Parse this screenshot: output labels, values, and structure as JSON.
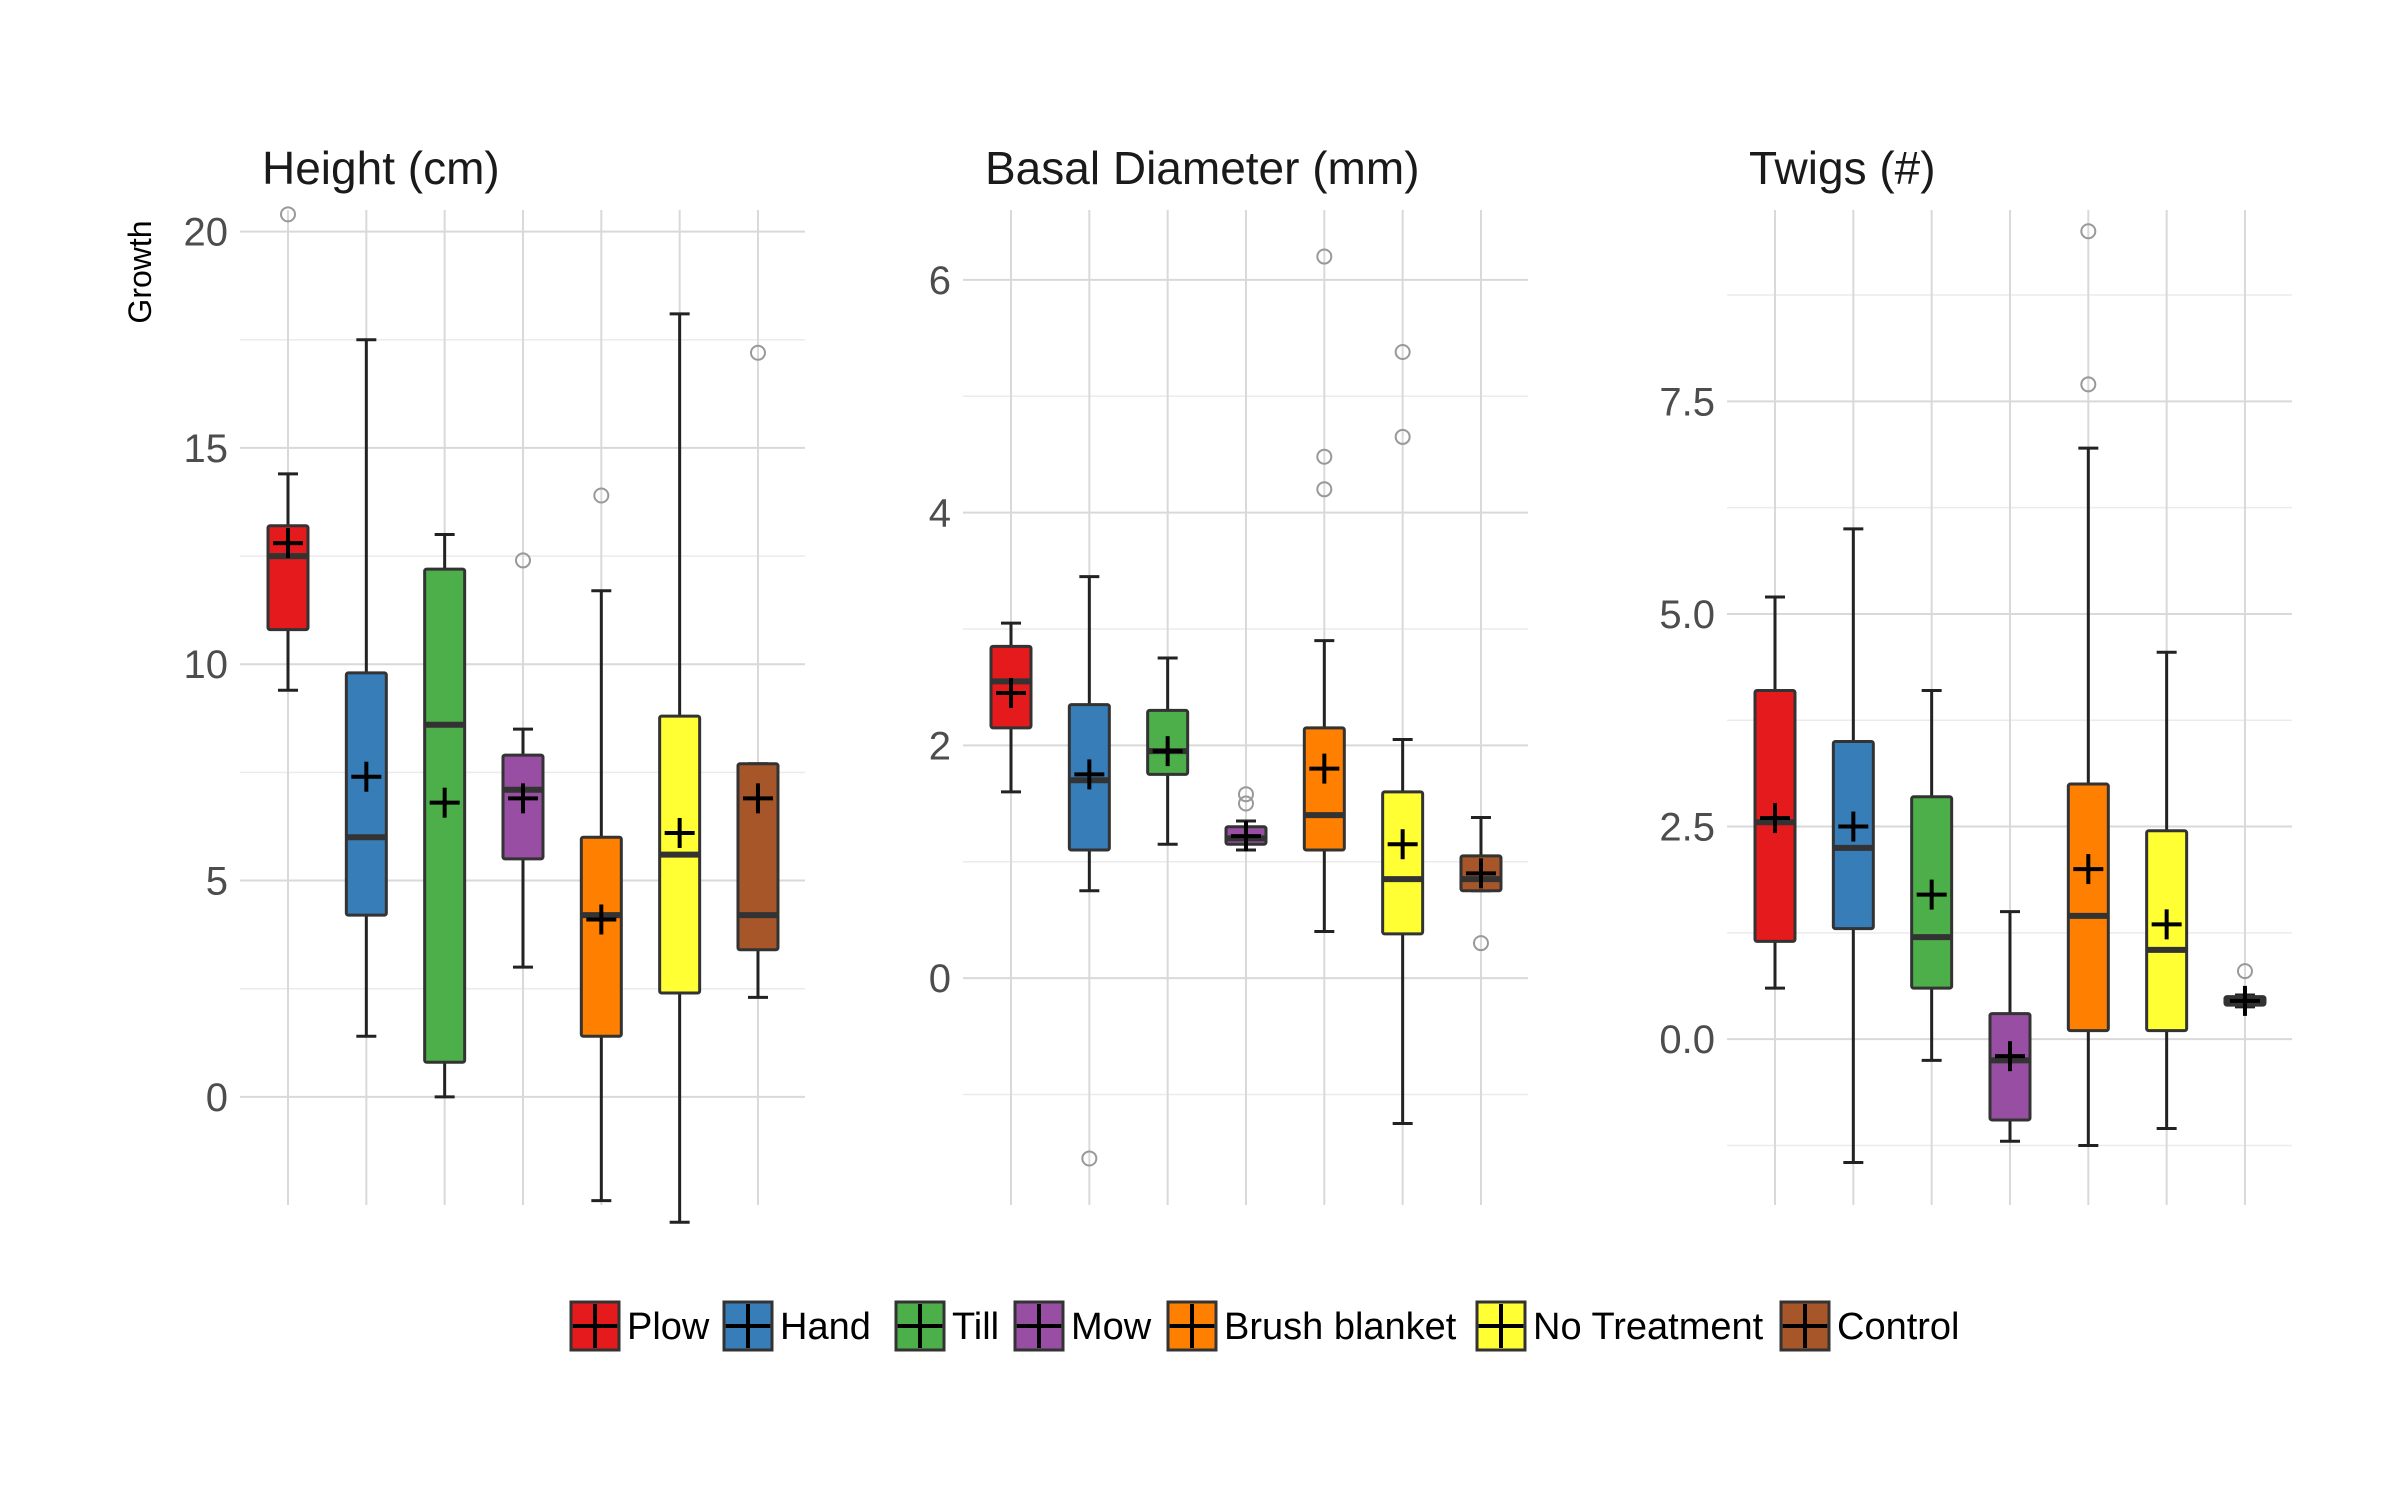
{
  "chart_data": {
    "type": "boxplot",
    "ylabel": "Growth",
    "categories": [
      "Plow",
      "Hand",
      "Till",
      "Mow",
      "Brush blanket",
      "No Treatment",
      "Control"
    ],
    "colors": [
      "#E41A1C",
      "#377EB8",
      "#4DAF4A",
      "#984EA3",
      "#FF7F00",
      "#FFFF33",
      "#A65628"
    ],
    "legend": {
      "position": "bottom",
      "labels": [
        "Plow",
        "Hand",
        "Till",
        "Mow",
        "Brush blanket",
        "No Treatment",
        "Control"
      ]
    },
    "panels": [
      {
        "title": "Height (cm)",
        "ylim": [
          -2.5,
          20.5
        ],
        "yticks": [
          0,
          5,
          10,
          15,
          20
        ],
        "ytick_labels": [
          "0",
          "5",
          "10",
          "15",
          "20"
        ],
        "boxes": [
          {
            "category": "Plow",
            "whisker_low": 9.4,
            "q1": 10.8,
            "median": 12.5,
            "q3": 13.2,
            "whisker_high": 14.4,
            "mean": 12.8,
            "outliers": [
              20.4
            ]
          },
          {
            "category": "Hand",
            "whisker_low": 1.4,
            "q1": 4.2,
            "median": 6.0,
            "q3": 9.8,
            "whisker_high": 17.5,
            "mean": 7.4,
            "outliers": []
          },
          {
            "category": "Till",
            "whisker_low": 0.0,
            "q1": 0.8,
            "median": 8.6,
            "q3": 12.2,
            "whisker_high": 13.0,
            "mean": 6.8,
            "outliers": []
          },
          {
            "category": "Mow",
            "whisker_low": 3.0,
            "q1": 5.5,
            "median": 7.1,
            "q3": 7.9,
            "whisker_high": 8.5,
            "mean": 6.9,
            "outliers": [
              12.4
            ]
          },
          {
            "category": "Brush blanket",
            "whisker_low": -2.4,
            "q1": 1.4,
            "median": 4.2,
            "q3": 6.0,
            "whisker_high": 11.7,
            "mean": 4.1,
            "outliers": [
              13.9
            ]
          },
          {
            "category": "No Treatment",
            "whisker_low": -2.9,
            "q1": 2.4,
            "median": 5.6,
            "q3": 8.8,
            "whisker_high": 18.1,
            "mean": 6.1,
            "outliers": []
          },
          {
            "category": "Control",
            "whisker_low": 2.3,
            "q1": 3.4,
            "median": 4.2,
            "q3": 7.7,
            "whisker_high": 7.7,
            "mean": 6.9,
            "outliers": [
              17.2
            ]
          }
        ]
      },
      {
        "title": "Basal Diameter (mm)",
        "ylim": [
          -1.95,
          6.6
        ],
        "yticks": [
          0,
          2,
          4,
          6
        ],
        "ytick_labels": [
          "0",
          "2",
          "4",
          "6"
        ],
        "boxes": [
          {
            "category": "Plow",
            "whisker_low": 1.6,
            "q1": 2.15,
            "median": 2.55,
            "q3": 2.85,
            "whisker_high": 3.05,
            "mean": 2.45,
            "outliers": []
          },
          {
            "category": "Hand",
            "whisker_low": 0.75,
            "q1": 1.1,
            "median": 1.7,
            "q3": 2.35,
            "whisker_high": 3.45,
            "mean": 1.75,
            "outliers": [
              -1.55
            ]
          },
          {
            "category": "Till",
            "whisker_low": 1.15,
            "q1": 1.75,
            "median": 1.95,
            "q3": 2.3,
            "whisker_high": 2.75,
            "mean": 1.95,
            "outliers": []
          },
          {
            "category": "Mow",
            "whisker_low": 1.1,
            "q1": 1.15,
            "median": 1.2,
            "q3": 1.3,
            "whisker_high": 1.35,
            "mean": 1.22,
            "outliers": [
              1.5,
              1.58
            ]
          },
          {
            "category": "Brush blanket",
            "whisker_low": 0.4,
            "q1": 1.1,
            "median": 1.4,
            "q3": 2.15,
            "whisker_high": 2.9,
            "mean": 1.8,
            "outliers": [
              4.2,
              4.48,
              6.2
            ]
          },
          {
            "category": "No Treatment",
            "whisker_low": -1.25,
            "q1": 0.38,
            "median": 0.85,
            "q3": 1.6,
            "whisker_high": 2.05,
            "mean": 1.15,
            "outliers": [
              4.65,
              5.38
            ]
          },
          {
            "category": "Control",
            "whisker_low": 0.75,
            "q1": 0.75,
            "median": 0.85,
            "q3": 1.05,
            "whisker_high": 1.38,
            "mean": 0.9,
            "outliers": [
              0.3
            ]
          }
        ]
      },
      {
        "title": "Twigs (#)",
        "ylim": [
          -1.95,
          9.75
        ],
        "yticks": [
          0,
          2.5,
          5,
          7.5
        ],
        "ytick_labels": [
          "0.0",
          "2.5",
          "5.0",
          "7.5"
        ],
        "boxes": [
          {
            "category": "Plow",
            "whisker_low": 0.6,
            "q1": 1.15,
            "median": 2.55,
            "q3": 4.1,
            "whisker_high": 5.2,
            "mean": 2.6,
            "outliers": []
          },
          {
            "category": "Hand",
            "whisker_low": -1.45,
            "q1": 1.3,
            "median": 2.25,
            "q3": 3.5,
            "whisker_high": 6.0,
            "mean": 2.5,
            "outliers": []
          },
          {
            "category": "Till",
            "whisker_low": -0.25,
            "q1": 0.6,
            "median": 1.2,
            "q3": 2.85,
            "whisker_high": 4.1,
            "mean": 1.7,
            "outliers": []
          },
          {
            "category": "Mow",
            "whisker_low": -1.2,
            "q1": -0.95,
            "median": -0.25,
            "q3": 0.3,
            "whisker_high": 1.5,
            "mean": -0.2,
            "outliers": []
          },
          {
            "category": "Brush blanket",
            "whisker_low": -1.25,
            "q1": 0.1,
            "median": 1.45,
            "q3": 3.0,
            "whisker_high": 6.95,
            "mean": 2.0,
            "outliers": [
              7.7,
              9.5
            ]
          },
          {
            "category": "No Treatment",
            "whisker_low": -1.05,
            "q1": 0.1,
            "median": 1.05,
            "q3": 2.45,
            "whisker_high": 4.55,
            "mean": 1.35,
            "outliers": []
          },
          {
            "category": "Control",
            "whisker_low": 0.38,
            "q1": 0.4,
            "median": 0.45,
            "q3": 0.5,
            "whisker_high": 0.52,
            "mean": 0.45,
            "outliers": [
              0.8
            ]
          }
        ]
      }
    ]
  }
}
